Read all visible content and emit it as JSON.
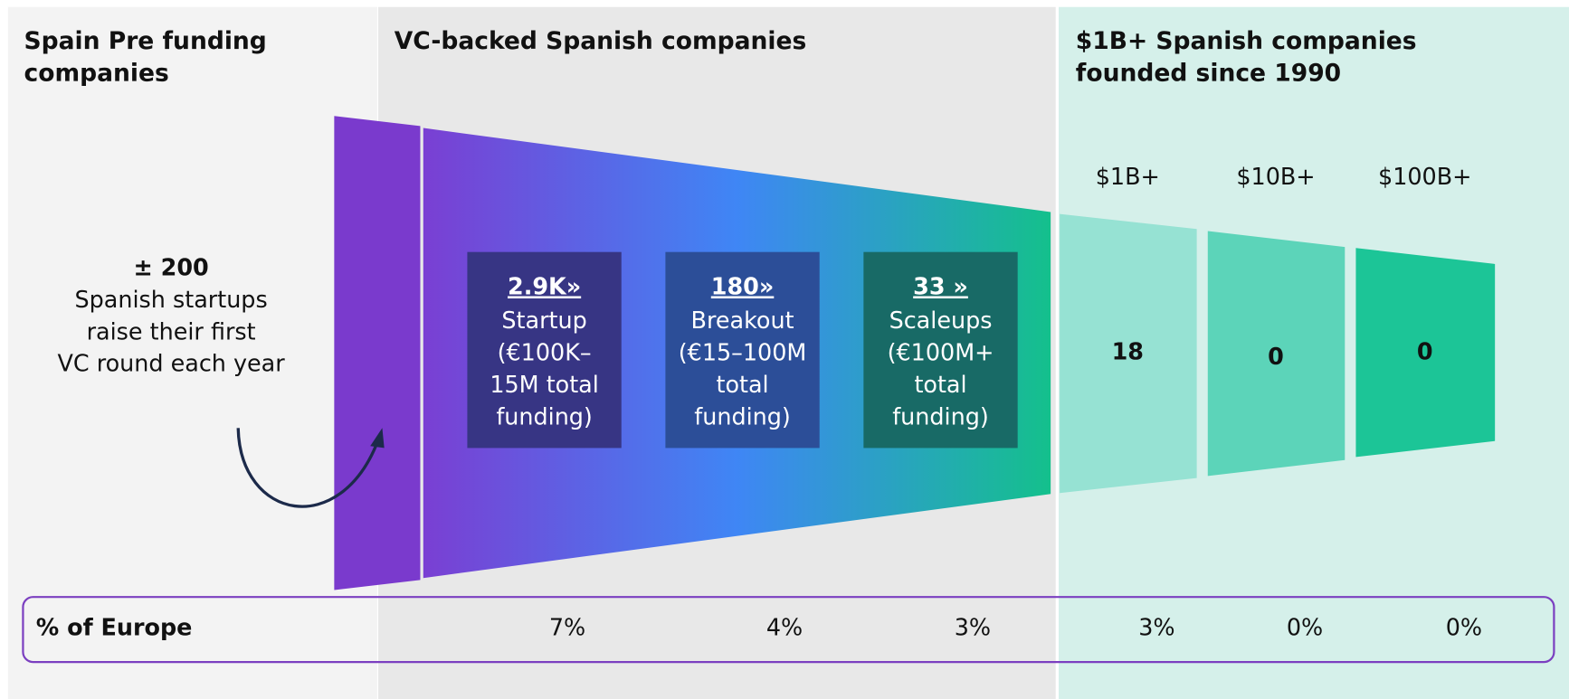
{
  "sections": [
    {
      "title": [
        "Spain Pre funding",
        "companies"
      ]
    },
    {
      "title": [
        "VC-backed Spanish companies"
      ]
    },
    {
      "title": [
        "$1B+ Spanish companies",
        "founded since 1990"
      ]
    }
  ],
  "pre": {
    "headline": "± 200",
    "lines": [
      "Spanish startups",
      "raise their first",
      "VC round each year"
    ]
  },
  "stages": [
    {
      "value": "2.9K»",
      "lines": [
        "Startup",
        "(€100K–",
        "15M total",
        "funding)"
      ]
    },
    {
      "value": "180»",
      "lines": [
        "Breakout",
        "(€15–100M",
        "total",
        "funding)"
      ]
    },
    {
      "value": "33 »",
      "lines": [
        "Scaleups",
        "(€100M+",
        "total",
        "funding)"
      ]
    }
  ],
  "unicorns": [
    {
      "label": "$1B+",
      "value": "18"
    },
    {
      "label": "$10B+",
      "value": "0"
    },
    {
      "label": "$100B+",
      "value": "0"
    }
  ],
  "europe": {
    "label": "% of Europe",
    "values": [
      "7%",
      "4%",
      "3%",
      "3%",
      "0%",
      "0%"
    ]
  }
}
